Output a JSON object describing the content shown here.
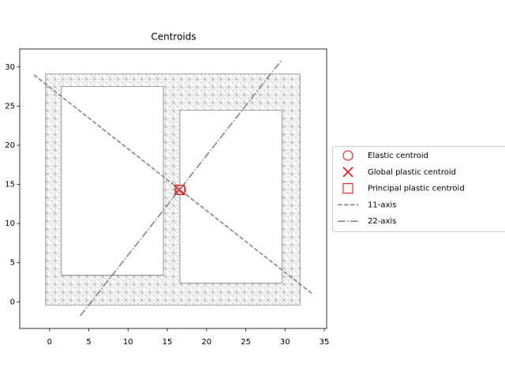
{
  "chart_data": {
    "type": "scatter",
    "title": "Centroids",
    "xlim": [
      -3.8,
      35.3
    ],
    "ylim": [
      -3.4,
      32.3
    ],
    "xticks": [
      0,
      5,
      10,
      15,
      20,
      25,
      30,
      35
    ],
    "yticks": [
      0,
      5,
      10,
      15,
      20,
      25,
      30
    ],
    "grid": false,
    "legend": "outside right",
    "shapes_color": "#808080",
    "shapes": [
      {
        "x": [
          -0.5,
          31.9,
          31.9,
          -0.5
        ],
        "y": [
          -0.4,
          -0.4,
          29.1,
          29.1
        ]
      },
      {
        "x": [
          1.5,
          14.5,
          14.5,
          1.5
        ],
        "y": [
          3.4,
          3.4,
          27.5,
          27.5
        ]
      },
      {
        "x": [
          16.6,
          29.6,
          29.6,
          16.6
        ],
        "y": [
          2.4,
          2.4,
          24.5,
          24.5
        ]
      }
    ],
    "series": [
      {
        "name": "Elastic centroid",
        "color": "#ff0000",
        "marker": "circle",
        "x": [
          16.7
        ],
        "y": [
          14.3
        ]
      },
      {
        "name": "Global plastic centroid",
        "color": "#ff0000",
        "marker": "x",
        "x": [
          16.5
        ],
        "y": [
          14.3
        ]
      },
      {
        "name": "Principal plastic centroid",
        "color": "#ff0000",
        "marker": "square",
        "x": [
          16.6
        ],
        "y": [
          14.3
        ]
      },
      {
        "name": "11-axis",
        "color": "#808080",
        "linestyle": "dashed",
        "x": [
          -2,
          33.5
        ],
        "y": [
          29,
          1
        ]
      },
      {
        "name": "22-axis",
        "color": "#808080",
        "linestyle": "dashdot",
        "x": [
          3.9,
          29.5
        ],
        "y": [
          -1.8,
          30.8
        ]
      }
    ]
  }
}
